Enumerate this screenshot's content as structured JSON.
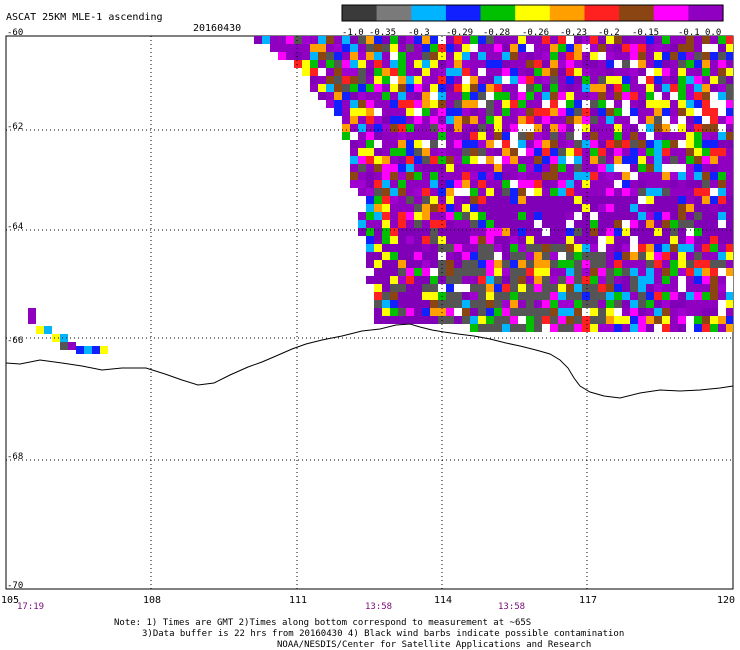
{
  "header": {
    "product": "ASCAT 25KM MLE-1 ascending",
    "date": "20160430"
  },
  "colorbar": {
    "labels": [
      "-1.0",
      "-0.35",
      "-0.3",
      "-0.29",
      "-0.28",
      "-0.26",
      "-0.23",
      "-0.2",
      "-0.15",
      "-0.1",
      "0.0"
    ],
    "colors": [
      "#3a3a3a",
      "#7a7a7a",
      "#00b4ff",
      "#1020ff",
      "#00c000",
      "#ffff00",
      "#ffa000",
      "#ff2020",
      "#8b4513",
      "#ff00ff",
      "#9000c0"
    ]
  },
  "map": {
    "lat_labels": [
      "-60",
      "-62",
      "-64",
      "-66",
      "-68",
      "-70"
    ],
    "lon_labels": [
      "105",
      "108",
      "111",
      "114",
      "117",
      "120"
    ],
    "times": [
      "17:19",
      "13:58",
      "13:58"
    ],
    "palette": [
      "#9000c0",
      "#8000b8",
      "#ff00ff",
      "#ff2020",
      "#ffa000",
      "#ffff00",
      "#00c000",
      "#1020ff",
      "#00b4ff",
      "#555555",
      "#8b4513",
      "#ffffff",
      "#a000d0"
    ]
  },
  "notes": {
    "line1": "Note: 1) Times are GMT 2)Times along bottom correspond to measurement at ~65S",
    "line2": "3)Data buffer is 22 hrs from 20160430 4) Black wind barbs indicate possible contamination",
    "line3": "NOAA/NESDIS/Center for Satellite Applications and Research"
  }
}
